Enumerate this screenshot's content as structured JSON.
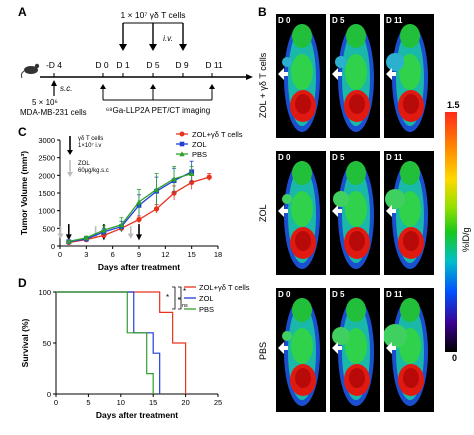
{
  "panels": {
    "a": "A",
    "b": "B",
    "c": "C",
    "d": "D"
  },
  "panel_a": {
    "cells_label": "1 × 10⁷ γδ T cells",
    "iv_label": "i.v.",
    "sc_label": "s.c.",
    "mda_cells": "5 × 10⁶",
    "mda_name": "MDA-MB-231 cells",
    "imaging": "⁶⁸Ga-LLP2A PET/CT imaging",
    "timeline": [
      "-D 4",
      "D 0",
      "D 1",
      "D 5",
      "D 9",
      "D 11"
    ]
  },
  "panel_b": {
    "rows": [
      "ZOL + γδ T cells",
      "ZOL",
      "PBS"
    ],
    "days": [
      "D 0",
      "D 5",
      "D 11"
    ],
    "colorbar_max": "1.5",
    "colorbar_min": "0",
    "colorbar_label": "%ID/g"
  },
  "chart_data": [
    {
      "type": "line",
      "panel": "C",
      "xlabel": "Days after treatment",
      "ylabel": "Tumor Volume (mm³)",
      "xlim": [
        0,
        18
      ],
      "ylim": [
        0,
        3000
      ],
      "xticks": [
        0,
        3,
        6,
        9,
        12,
        15,
        18
      ],
      "yticks": [
        0,
        500,
        1000,
        1500,
        2000,
        2500,
        3000
      ],
      "legend": [
        "ZOL+γδ T cells",
        "ZOL",
        "PBS"
      ],
      "annotations": [
        "γδ T cells",
        "1×10⁷ i.v",
        "ZOL",
        "60μg/kg.s.c"
      ],
      "series": [
        {
          "name": "ZOL+γδ T cells",
          "color": "#e8321e",
          "marker": "circle",
          "x": [
            1,
            3,
            5,
            7,
            9,
            11,
            13,
            15,
            17
          ],
          "y": [
            100,
            180,
            300,
            500,
            750,
            1050,
            1500,
            1800,
            1950
          ],
          "err": [
            20,
            30,
            50,
            60,
            100,
            120,
            200,
            200,
            100
          ]
        },
        {
          "name": "ZOL",
          "color": "#1f3fd6",
          "marker": "square",
          "x": [
            1,
            3,
            5,
            7,
            9,
            11,
            13,
            15
          ],
          "y": [
            120,
            200,
            400,
            550,
            1150,
            1550,
            1850,
            2100
          ],
          "err": [
            20,
            40,
            100,
            150,
            300,
            400,
            350,
            300
          ]
        },
        {
          "name": "PBS",
          "color": "#2ea02e",
          "marker": "triangle",
          "x": [
            1,
            3,
            5,
            7,
            9,
            11,
            13,
            15
          ],
          "y": [
            130,
            230,
            450,
            600,
            1250,
            1600,
            1900,
            2050
          ],
          "err": [
            20,
            50,
            120,
            200,
            350,
            450,
            350,
            200
          ]
        }
      ]
    },
    {
      "type": "line",
      "panel": "D",
      "xlabel": "Days after treatment",
      "ylabel": "Survival    (%)",
      "xlim": [
        0,
        25
      ],
      "ylim": [
        0,
        100
      ],
      "xticks": [
        0,
        5,
        10,
        15,
        20,
        25
      ],
      "yticks": [
        0,
        50,
        100
      ],
      "legend": [
        "ZOL+γδ T cells",
        "ZOL",
        "PBS"
      ],
      "significance": [
        "*",
        "*",
        "ns"
      ],
      "series": [
        {
          "name": "ZOL+γδ T cells",
          "color": "#e8321e",
          "steps": [
            [
              0,
              100
            ],
            [
              16,
              100
            ],
            [
              16,
              80
            ],
            [
              18,
              80
            ],
            [
              18,
              50
            ],
            [
              20,
              50
            ],
            [
              20,
              0
            ]
          ]
        },
        {
          "name": "ZOL",
          "color": "#1f3fd6",
          "steps": [
            [
              0,
              100
            ],
            [
              12,
              100
            ],
            [
              12,
              60
            ],
            [
              15,
              60
            ],
            [
              15,
              40
            ],
            [
              16,
              40
            ],
            [
              16,
              0
            ]
          ]
        },
        {
          "name": "PBS",
          "color": "#2ea02e",
          "steps": [
            [
              0,
              100
            ],
            [
              11,
              100
            ],
            [
              11,
              60
            ],
            [
              14,
              60
            ],
            [
              14,
              20
            ],
            [
              15,
              20
            ],
            [
              15,
              0
            ]
          ]
        }
      ]
    }
  ]
}
